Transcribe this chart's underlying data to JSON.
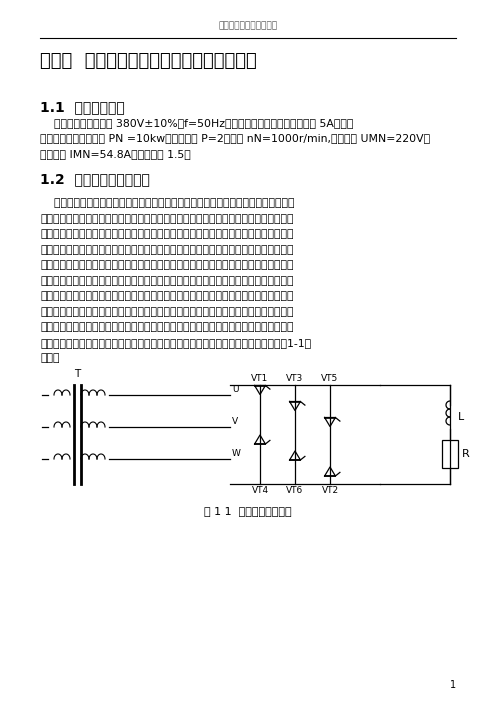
{
  "header_text": "三相桥式整流电路的设计",
  "chapter_title": "第一章  主要技术数据和可控整流电路的选择",
  "section1_title": "1.1  主要技术数据",
  "section1_body_lines": [
    "    输入交流电源：三相 380V±10%、f=50Hz、直流输出电流连续的最小值为 5A。电动",
    "机额定参数：额定功率 PN =10kw、磁极对数 P=2、额定 nN=1000r/min,额定电压 UMN=220V、",
    "额定电流 IMN=54.8A、过载倍数 1.5。"
  ],
  "section2_title": "1.2  可控整流电路的选择",
  "section2_body_lines": [
    "    晶闸管可控整流电路型式较多，各种整流电路的技术性能和经济性能个不相同。单相",
    "可控整流电路电压脉动大、脉动频率低、影响电网三相平衡运行。三相半波可控整流电路",
    "虽然对影响电网三相平衡运行没有影响，但其脉动仍然较大。此外，整流变压器有直流分",
    "量磁势，利用率低。当整流电压相同时，晶闸管元件的反峰压比三相桥式整流电路高，晶",
    "闸管价格高三相半波可控整流电路晶闸管数量比三相桥式可控整流电路少，投资比三相式",
    "可控整流电路少。三相桥式可控整流电路它的脉动系数比三相半波可控整流电路少一半，",
    "整流变压器没有直流分量磁势，变压器利用率高，晶闸管反峰压低。这种可控整流电路晶",
    "闸管数量是三相半波可控整流电路的两倍。总投资比三相半波可控整流电路多。从上面几",
    "种可控整流电路比较中可以看到：三相桥式可控整流电路从技术性能和经济性能两项指标",
    "综合考虑比其它可控整流电路优越，故本设计确定选择三相桥式可控整流电路。如图（1-1）",
    "所示。"
  ],
  "figure_caption": "图 1 1  三相桥式整流电路",
  "page_number": "1",
  "bg_color": "#ffffff",
  "text_color": "#000000"
}
